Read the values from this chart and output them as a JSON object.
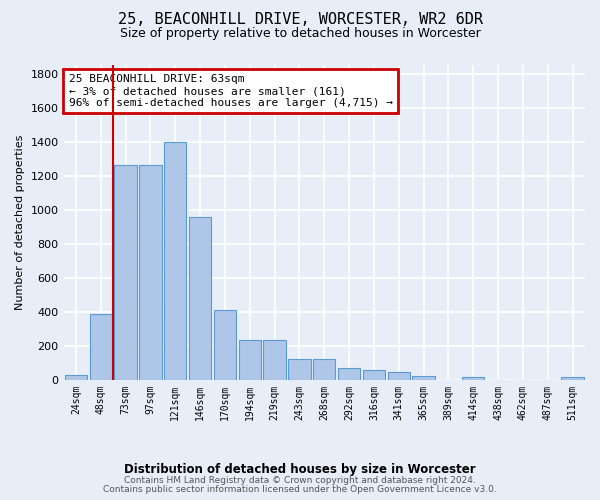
{
  "title": "25, BEACONHILL DRIVE, WORCESTER, WR2 6DR",
  "subtitle": "Size of property relative to detached houses in Worcester",
  "xlabel": "Distribution of detached houses by size in Worcester",
  "ylabel": "Number of detached properties",
  "footer_line1": "Contains HM Land Registry data © Crown copyright and database right 2024.",
  "footer_line2": "Contains public sector information licensed under the Open Government Licence v3.0.",
  "bar_labels": [
    "24sqm",
    "48sqm",
    "73sqm",
    "97sqm",
    "121sqm",
    "146sqm",
    "170sqm",
    "194sqm",
    "219sqm",
    "243sqm",
    "268sqm",
    "292sqm",
    "316sqm",
    "341sqm",
    "365sqm",
    "389sqm",
    "414sqm",
    "438sqm",
    "462sqm",
    "487sqm",
    "511sqm"
  ],
  "bar_values": [
    30,
    390,
    1260,
    1265,
    1395,
    955,
    410,
    235,
    235,
    120,
    120,
    70,
    60,
    45,
    20,
    0,
    18,
    0,
    0,
    0,
    18
  ],
  "bar_color": "#aec6e8",
  "bar_edge_color": "#5b9bd5",
  "background_color": "#e8eef8",
  "grid_color": "#ffffff",
  "vline_x": 1.5,
  "vline_color": "#cc0000",
  "annotation_text": "25 BEACONHILL DRIVE: 63sqm\n← 3% of detached houses are smaller (161)\n96% of semi-detached houses are larger (4,715) →",
  "annotation_box_color": "#ffffff",
  "annotation_box_edge": "#cc0000",
  "ylim": [
    0,
    1850
  ],
  "yticks": [
    0,
    200,
    400,
    600,
    800,
    1000,
    1200,
    1400,
    1600,
    1800
  ],
  "title_fontsize": 11,
  "subtitle_fontsize": 9,
  "ylabel_fontsize": 8,
  "xlabel_fontsize": 8.5,
  "footer_fontsize": 6.5,
  "annotation_fontsize": 8
}
